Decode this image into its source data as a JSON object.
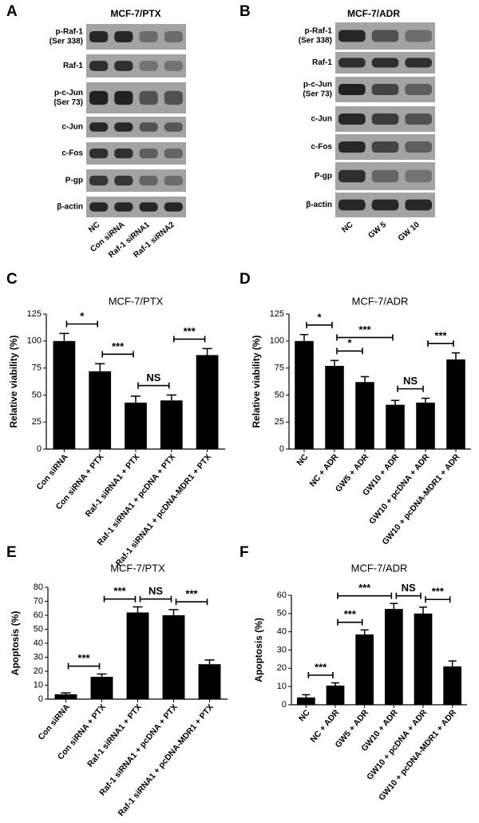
{
  "blots": [
    {
      "label": "A",
      "title": "MCF-7/PTX",
      "proteins": [
        [
          "p-Raf-1",
          "(Ser 338)"
        ],
        [
          "Raf-1"
        ],
        [
          "p-c-Jun",
          "(Ser 73)"
        ],
        [
          "c-Jun"
        ],
        [
          "c-Fos"
        ],
        [
          "P-gp"
        ],
        [
          "β-actin"
        ]
      ],
      "lanes": [
        "NC",
        "Con siRNA",
        "Raf-1 siRNA1",
        "Raf-1 siRNA2"
      ]
    },
    {
      "label": "B",
      "title": "MCF-7/ADR",
      "proteins": [
        [
          "p-Raf-1",
          "(Ser 338)"
        ],
        [
          "Raf-1"
        ],
        [
          "p-c-Jun",
          "(Ser 73)"
        ],
        [
          "c-Jun"
        ],
        [
          "c-Fos"
        ],
        [
          "P-gp"
        ],
        [
          "β-actin"
        ]
      ],
      "lanes": [
        "NC",
        "GW 5",
        "GW 10"
      ]
    }
  ],
  "chart_data": [
    {
      "type": "bar",
      "label": "C",
      "title": "MCF-7/PTX",
      "ylabel": "Relative viability (%)",
      "categories": [
        "Con siRNA",
        "Con siRNA + PTX",
        "Raf-1 siRNA1 + PTX",
        "Raf-1 siRNA1 + pcDNA + PTX",
        "Raf-1 siRNA1 + pcDNA-MDR1 + PTX"
      ],
      "values": [
        100,
        72,
        43,
        45,
        87
      ],
      "errors": [
        7,
        7,
        6,
        5,
        6
      ],
      "color": "#000000",
      "ylim": [
        0,
        125
      ],
      "yticks": [
        0,
        25,
        50,
        75,
        100,
        125
      ],
      "annotations": [
        {
          "text": "*",
          "from": 0,
          "to": 1
        },
        {
          "text": "***",
          "from": 1,
          "to": 2
        },
        {
          "text": "NS",
          "from": 2,
          "to": 3
        },
        {
          "text": "***",
          "from": 3,
          "to": 4
        }
      ]
    },
    {
      "type": "bar",
      "label": "D",
      "title": "MCF-7/ADR",
      "ylabel": "Relative viability (%)",
      "categories": [
        "NC",
        "NC + ADR",
        "GW5 + ADR",
        "GW10 + ADR",
        "GW10 + pcDNA + ADR",
        "GW10 + pcDNA-MDR1 + ADR"
      ],
      "values": [
        100,
        77,
        62,
        41,
        43,
        83
      ],
      "errors": [
        6,
        5,
        5,
        4,
        4,
        6
      ],
      "color": "#000000",
      "ylim": [
        0,
        125
      ],
      "yticks": [
        0,
        25,
        50,
        75,
        100,
        125
      ],
      "annotations": [
        {
          "text": "*",
          "from": 0,
          "to": 1
        },
        {
          "text": "*",
          "from": 1,
          "to": 2
        },
        {
          "text": "***",
          "from": 1,
          "to": 3
        },
        {
          "text": "NS",
          "from": 3,
          "to": 4
        },
        {
          "text": "***",
          "from": 4,
          "to": 5
        }
      ]
    },
    {
      "type": "bar",
      "label": "E",
      "title": "MCF-7/PTX",
      "ylabel": "Apoptosis (%)",
      "categories": [
        "Con siRNA",
        "Con siRNA + PTX",
        "Raf-1 siRNA1 + PTX",
        "Raf-1 siRNA1 + pcDNA + PTX",
        "Raf-1 siRNA1 + pcDNA-MDR1 + PTX"
      ],
      "values": [
        3.5,
        16,
        62,
        60,
        25
      ],
      "errors": [
        1,
        2,
        4,
        4,
        3
      ],
      "color": "#000000",
      "ylim": [
        0,
        80
      ],
      "yticks": [
        0,
        10,
        20,
        30,
        40,
        50,
        60,
        70,
        80
      ],
      "annotations": [
        {
          "text": "***",
          "from": 0,
          "to": 1
        },
        {
          "text": "***",
          "from": 1,
          "to": 2
        },
        {
          "text": "NS",
          "from": 2,
          "to": 3
        },
        {
          "text": "***",
          "from": 3,
          "to": 4
        }
      ]
    },
    {
      "type": "bar",
      "label": "F",
      "title": "MCF-7/ADR",
      "ylabel": "Apoptosis (%)",
      "categories": [
        "NC",
        "NC + ADR",
        "GW5 + ADR",
        "GW10 + ADR",
        "GW10 + pcDNA + ADR",
        "GW10 + pcDNA-MDR1 + ADR"
      ],
      "values": [
        4,
        10.5,
        38.5,
        52.5,
        50,
        21
      ],
      "errors": [
        1.5,
        1.5,
        2.5,
        3,
        3.5,
        3
      ],
      "color": "#000000",
      "ylim": [
        0,
        60
      ],
      "yticks": [
        0,
        10,
        20,
        30,
        40,
        50,
        60
      ],
      "annotations": [
        {
          "text": "***",
          "from": 0,
          "to": 1
        },
        {
          "text": "***",
          "from": 1,
          "to": 2
        },
        {
          "text": "***",
          "from": 1,
          "to": 3
        },
        {
          "text": "NS",
          "from": 3,
          "to": 4
        },
        {
          "text": "***",
          "from": 4,
          "to": 5
        }
      ]
    }
  ]
}
